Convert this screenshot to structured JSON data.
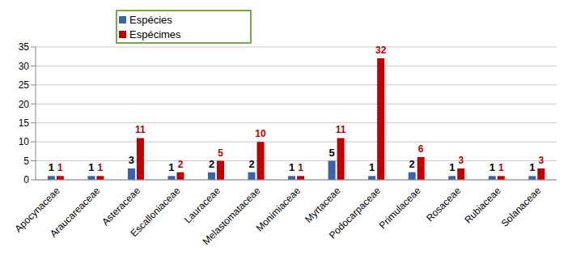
{
  "chart_data": {
    "type": "bar",
    "categories": [
      "Apocynaceae",
      "Araucareaceae",
      "Asteraceae",
      "Escalloniaceae",
      "Lauraceae",
      "Melastomataceae",
      "Monimiaceae",
      "Myrtaceae",
      "Podocarpaceae",
      "Primulaceae",
      "Rosaceae",
      "Rubiaceae",
      "Solanaceae"
    ],
    "series": [
      {
        "name": "Espécies",
        "color": "#3a63ad",
        "values": [
          1,
          1,
          3,
          1,
          2,
          2,
          1,
          5,
          1,
          2,
          1,
          1,
          1
        ]
      },
      {
        "name": "Espécimes",
        "color": "#c00000",
        "values": [
          1,
          1,
          11,
          2,
          5,
          10,
          1,
          11,
          32,
          6,
          3,
          1,
          3
        ]
      }
    ],
    "ylim": [
      0,
      35
    ],
    "yticks": [
      0,
      5,
      10,
      15,
      20,
      25,
      30,
      35
    ],
    "grid": true,
    "data_labels": true,
    "legend": "top"
  }
}
